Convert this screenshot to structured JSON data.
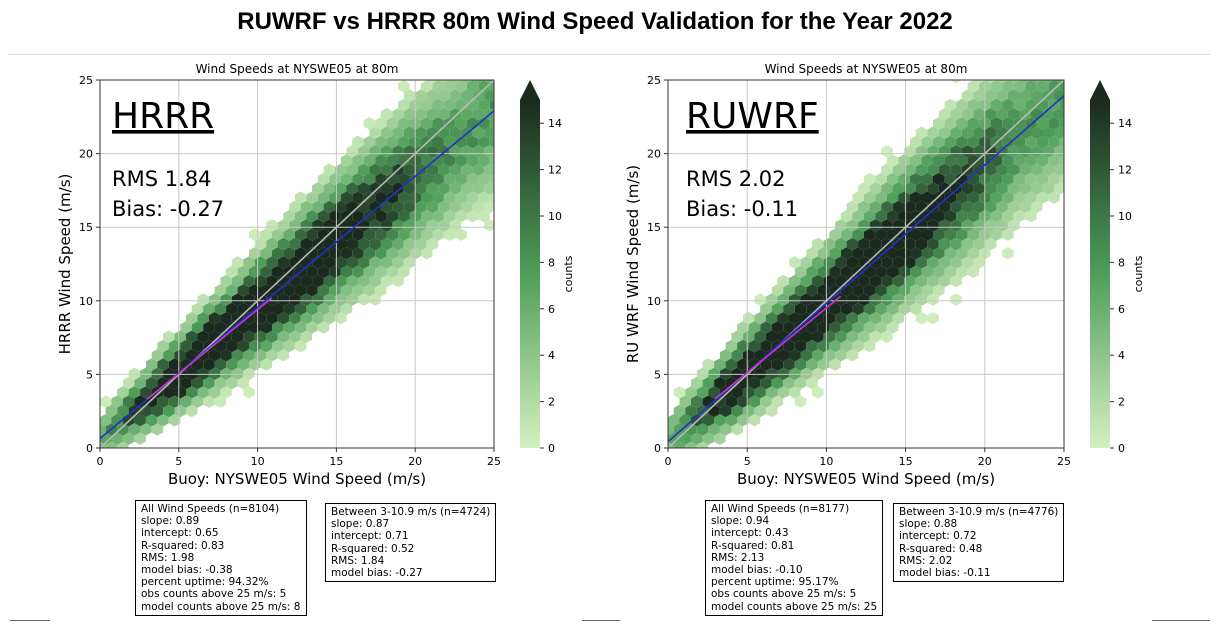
{
  "page": {
    "title": "RUWRF vs HRRR 80m Wind Speed Validation for the Year 2022"
  },
  "colors": {
    "hex_light": "#d4f0c0",
    "hex_mid": "#4f9e5a",
    "hex_dark": "#1a2a1e",
    "fit_line": "#2233cc",
    "one_to_one_line": "#b8b8b8",
    "subset_fit_line": "#cc33cc"
  },
  "panels": [
    {
      "subplot_title": "Wind Speeds at NYSWE05 at 80m",
      "big_label": "HRRR",
      "rms_text": "RMS 1.84",
      "bias_text": "Bias: -0.27",
      "xlabel": "Buoy: NYSWE05 Wind Speed (m/s)",
      "ylabel": "HRRR Wind Speed (m/s)",
      "colorbar_label": "counts",
      "all_box": {
        "lines": [
          "All Wind Speeds (n=8104)",
          "slope: 0.89",
          "intercept: 0.65",
          "R-squared: 0.83",
          "RMS: 1.98",
          "model bias: -0.38",
          "percent uptime: 94.32%",
          "obs counts above 25 m/s: 5",
          "model counts above 25 m/s: 8"
        ]
      },
      "subset_box": {
        "lines": [
          "Between 3-10.9 m/s (n=4724)",
          "slope: 0.87",
          "intercept: 0.71",
          "R-squared: 0.52",
          "RMS: 1.84",
          "model bias: -0.27"
        ]
      }
    },
    {
      "subplot_title": "Wind Speeds at NYSWE05 at 80m",
      "big_label": "RUWRF",
      "rms_text": "RMS 2.02",
      "bias_text": "Bias: -0.11",
      "xlabel": "Buoy: NYSWE05 Wind Speed (m/s)",
      "ylabel": "RU WRF Wind Speed (m/s)",
      "colorbar_label": "counts",
      "all_box": {
        "lines": [
          "All Wind Speeds (n=8177)",
          "slope: 0.94",
          "intercept: 0.43",
          "R-squared: 0.81",
          "RMS: 2.13",
          "model bias: -0.10",
          "percent uptime: 95.17%",
          "obs counts above 25 m/s: 5",
          "model counts above 25 m/s: 25"
        ]
      },
      "subset_box": {
        "lines": [
          "Between 3-10.9 m/s (n=4776)",
          "slope: 0.88",
          "intercept: 0.72",
          "R-squared: 0.48",
          "RMS: 2.02",
          "model bias: -0.11"
        ]
      }
    }
  ],
  "chart_data": [
    {
      "type": "hexbin-scatter",
      "title": "Wind Speeds at NYSWE05 at 80m",
      "xlabel": "Buoy: NYSWE05 Wind Speed (m/s)",
      "ylabel": "HRRR Wind Speed (m/s)",
      "xlim": [
        0,
        25
      ],
      "ylim": [
        0,
        25
      ],
      "xticks": [
        0,
        5,
        10,
        15,
        20,
        25
      ],
      "yticks": [
        0,
        5,
        10,
        15,
        20,
        25
      ],
      "grid": true,
      "colorbar": {
        "label": "counts",
        "range": [
          0,
          15
        ],
        "ticks": [
          0,
          2,
          4,
          6,
          8,
          10,
          12,
          14
        ],
        "extend": "max"
      },
      "lines": [
        {
          "kind": "1:1",
          "x": [
            0,
            25
          ],
          "y": [
            0,
            25
          ]
        },
        {
          "kind": "fit_all",
          "slope": 0.89,
          "intercept": 0.65,
          "x": [
            0,
            25
          ]
        },
        {
          "kind": "fit_3_to_10.9",
          "slope": 0.87,
          "intercept": 0.71,
          "x": [
            3,
            10.9
          ]
        }
      ],
      "distribution": {
        "n": 8104,
        "slope": 0.89,
        "intercept": 0.65,
        "rms": 1.98
      }
    },
    {
      "type": "hexbin-scatter",
      "title": "Wind Speeds at NYSWE05 at 80m",
      "xlabel": "Buoy: NYSWE05 Wind Speed (m/s)",
      "ylabel": "RU WRF Wind Speed (m/s)",
      "xlim": [
        0,
        25
      ],
      "ylim": [
        0,
        25
      ],
      "xticks": [
        0,
        5,
        10,
        15,
        20,
        25
      ],
      "yticks": [
        0,
        5,
        10,
        15,
        20,
        25
      ],
      "grid": true,
      "colorbar": {
        "label": "counts",
        "range": [
          0,
          15
        ],
        "ticks": [
          0,
          2,
          4,
          6,
          8,
          10,
          12,
          14
        ],
        "extend": "max"
      },
      "lines": [
        {
          "kind": "1:1",
          "x": [
            0,
            25
          ],
          "y": [
            0,
            25
          ]
        },
        {
          "kind": "fit_all",
          "slope": 0.94,
          "intercept": 0.43,
          "x": [
            0,
            25
          ]
        },
        {
          "kind": "fit_3_to_10.9",
          "slope": 0.88,
          "intercept": 0.72,
          "x": [
            3,
            10.9
          ]
        }
      ],
      "distribution": {
        "n": 8177,
        "slope": 0.94,
        "intercept": 0.43,
        "rms": 2.13
      }
    }
  ]
}
